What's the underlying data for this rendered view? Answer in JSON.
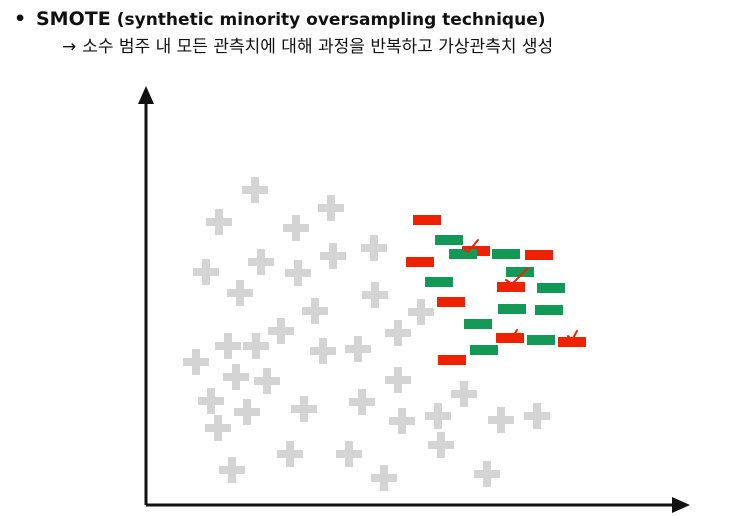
{
  "slide": {
    "bullet": "•",
    "title_strong": "SMOTE",
    "title_rest": "(synthetic minority oversampling technique)",
    "subtitle_arrow": "→",
    "subtitle_text": "소수 범주 내 모든 관측치에 대해 과정을 반복하고 가상관측치 생성"
  },
  "colors": {
    "axis": "#111111",
    "majority": "#d4d4d4",
    "minority": "#ee2200",
    "synthetic": "#119955",
    "link": "#ee2200"
  },
  "icons": {
    "majority_marker": "plus-icon",
    "minority_marker": "red-dash",
    "synthetic_marker": "green-dash",
    "link_marker": "check-mark-icon"
  }
}
